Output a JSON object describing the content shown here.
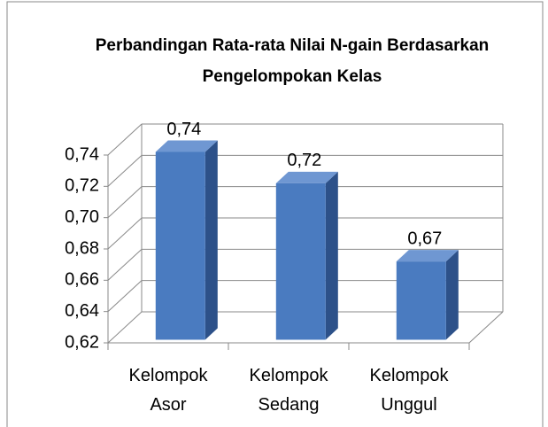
{
  "chart_data": {
    "type": "bar3d",
    "title": "Perbandingan Rata-rata Nilai N-gain Berdasarkan Pengelompokan Kelas",
    "categories": [
      "Kelompok Asor",
      "Kelompok Sedang",
      "Kelompok Unggul"
    ],
    "values": [
      0.74,
      0.72,
      0.67
    ],
    "value_labels": [
      "0,74",
      "0,72",
      "0,67"
    ],
    "color": "#4a7bc0",
    "ylim": [
      0.62,
      0.74
    ],
    "yticks": [
      {
        "value": 0.62,
        "label": "0,62"
      },
      {
        "value": 0.64,
        "label": "0,64"
      },
      {
        "value": 0.66,
        "label": "0,66"
      },
      {
        "value": 0.68,
        "label": "0,68"
      },
      {
        "value": 0.7,
        "label": "0,70"
      },
      {
        "value": 0.72,
        "label": "0,72"
      },
      {
        "value": 0.74,
        "label": "0,74"
      }
    ],
    "grid": true
  }
}
